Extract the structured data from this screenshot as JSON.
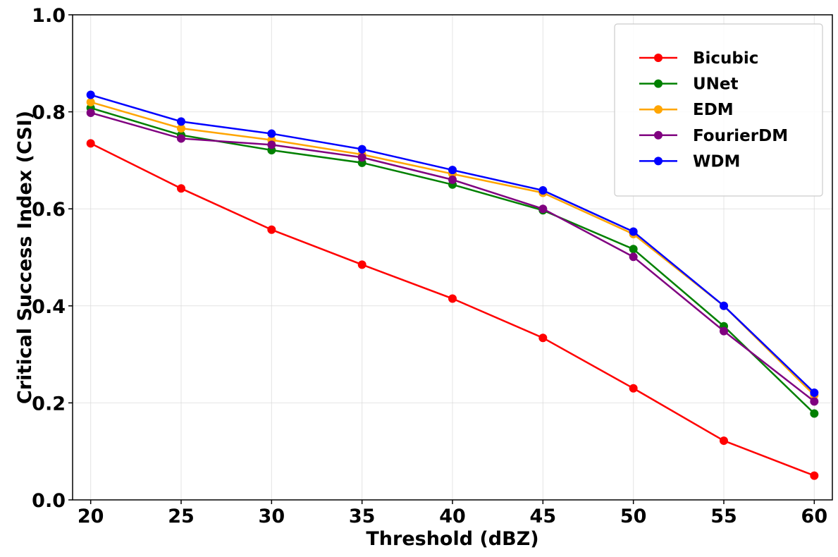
{
  "chart_data": {
    "type": "line",
    "title": "",
    "xlabel": "Threshold (dBZ)",
    "ylabel": "Critical Success Index (CSI)",
    "x": [
      20,
      25,
      30,
      35,
      40,
      45,
      50,
      55,
      60
    ],
    "xlim": [
      19,
      61
    ],
    "ylim": [
      0.0,
      1.0
    ],
    "xticks": [
      "20",
      "25",
      "30",
      "35",
      "40",
      "45",
      "50",
      "55",
      "60"
    ],
    "yticks": [
      "0.0",
      "0.2",
      "0.4",
      "0.6",
      "0.8",
      "1.0"
    ],
    "grid": true,
    "legend_position": "top-right",
    "series": [
      {
        "name": "Bicubic",
        "color": "#ff0000",
        "values": [
          0.735,
          0.642,
          0.557,
          0.485,
          0.415,
          0.334,
          0.23,
          0.122,
          0.05
        ]
      },
      {
        "name": "UNet",
        "color": "#008000",
        "values": [
          0.808,
          0.752,
          0.721,
          0.695,
          0.65,
          0.597,
          0.517,
          0.358,
          0.178
        ]
      },
      {
        "name": "EDM",
        "color": "#ffa500",
        "values": [
          0.82,
          0.766,
          0.742,
          0.712,
          0.672,
          0.633,
          0.548,
          0.4,
          0.216
        ]
      },
      {
        "name": "FourierDM",
        "color": "#800080",
        "values": [
          0.798,
          0.745,
          0.732,
          0.706,
          0.66,
          0.6,
          0.501,
          0.348,
          0.203
        ]
      },
      {
        "name": "WDM",
        "color": "#0000ff",
        "values": [
          0.835,
          0.78,
          0.755,
          0.723,
          0.68,
          0.638,
          0.553,
          0.4,
          0.221
        ]
      }
    ]
  }
}
